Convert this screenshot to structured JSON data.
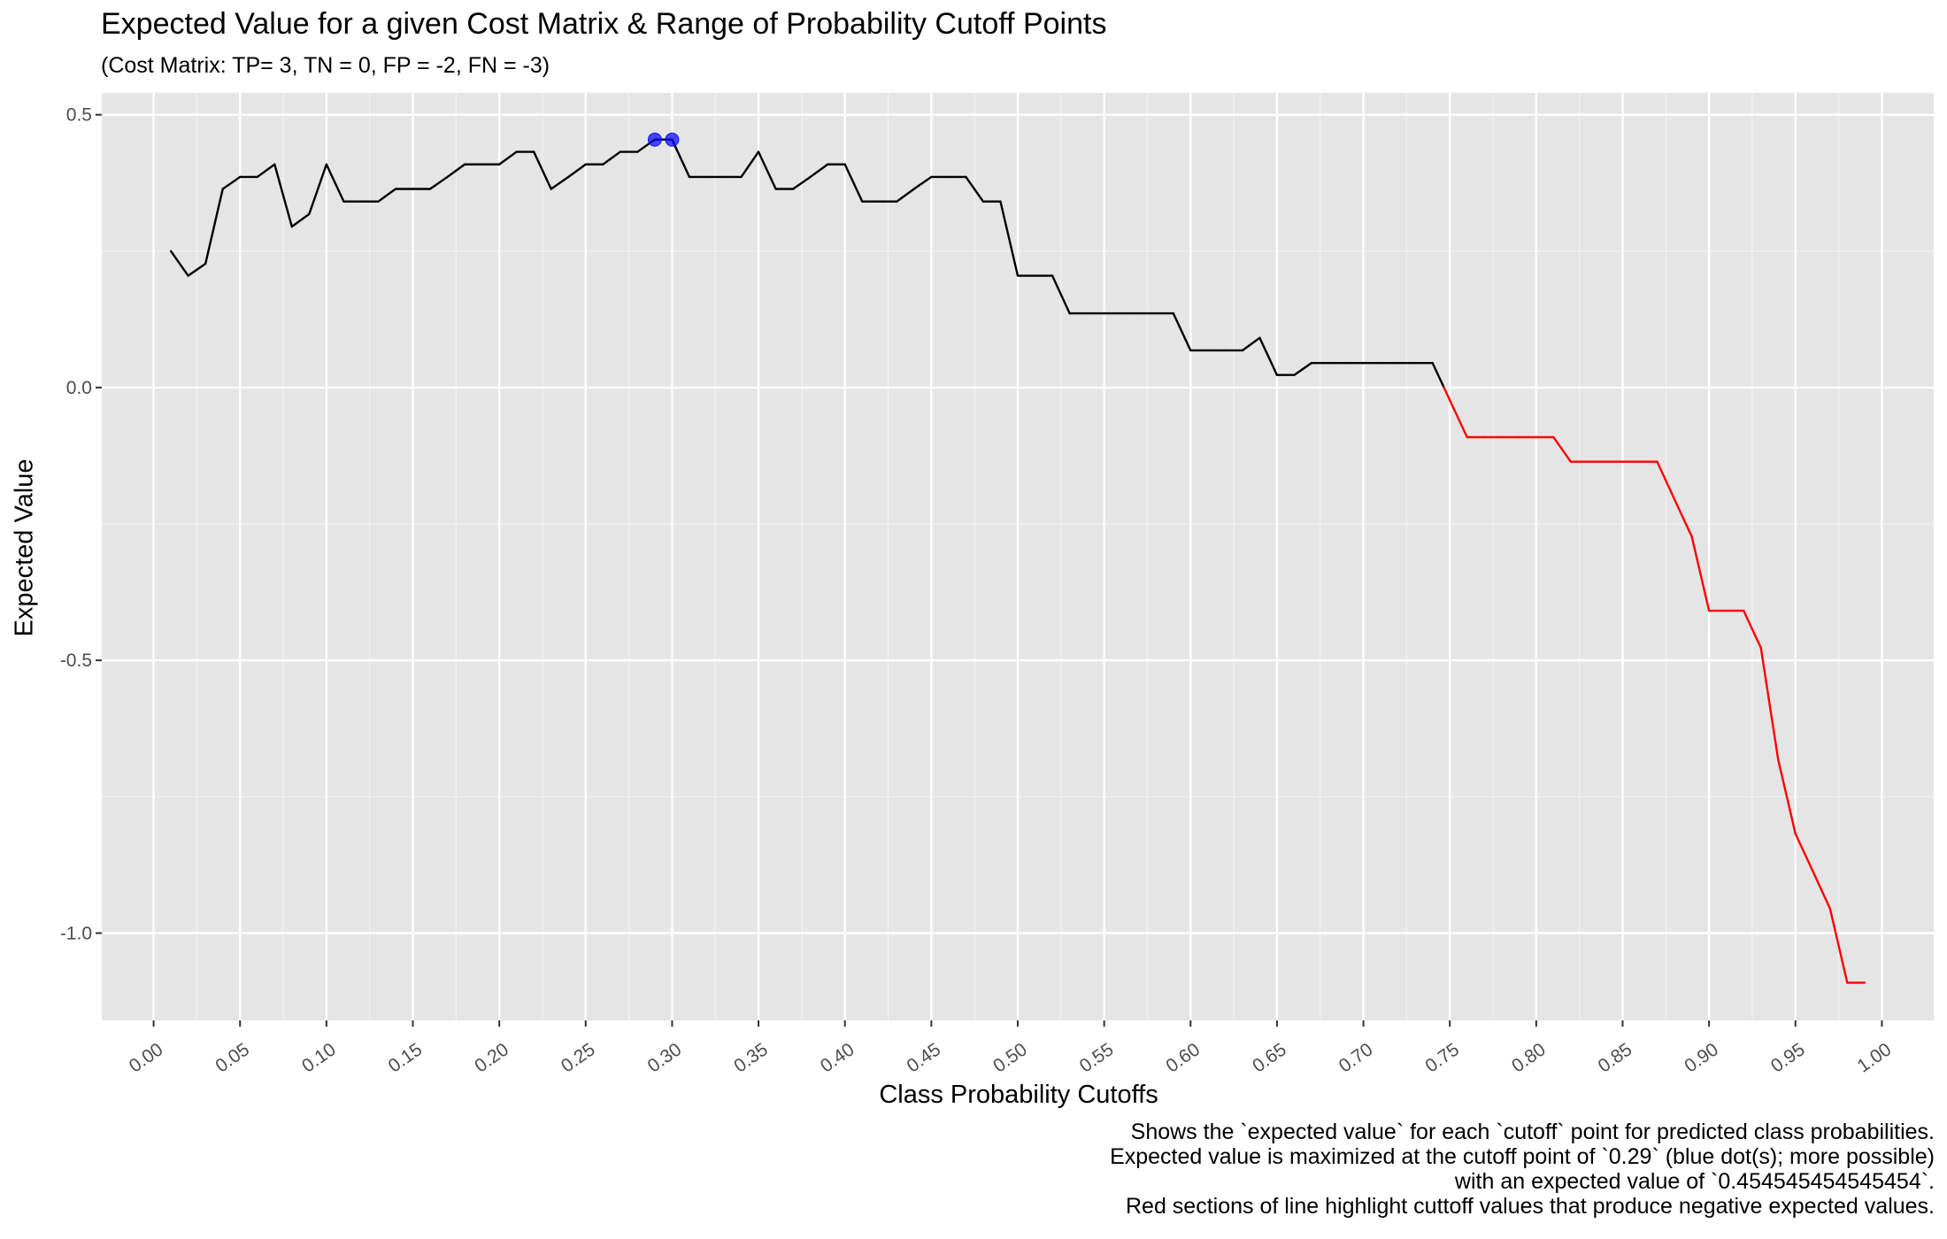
{
  "chart_data": {
    "type": "line",
    "title": "Expected Value for a given Cost Matrix & Range of Probability Cutoff Points",
    "subtitle": "(Cost Matrix: TP= 3, TN = 0, FP = -2, FN = -3)",
    "xlabel": "Class Probability Cutoffs",
    "ylabel": "Expected Value",
    "xlim": [
      -0.03,
      1.03
    ],
    "ylim": [
      -1.16,
      0.54
    ],
    "x_ticks": [
      "0.00",
      "0.05",
      "0.10",
      "0.15",
      "0.20",
      "0.25",
      "0.30",
      "0.35",
      "0.40",
      "0.45",
      "0.50",
      "0.55",
      "0.60",
      "0.65",
      "0.70",
      "0.75",
      "0.80",
      "0.85",
      "0.90",
      "0.95",
      "1.00"
    ],
    "y_ticks": [
      {
        "value": 0.5,
        "label": "0.5"
      },
      {
        "value": 0.0,
        "label": "0.0"
      },
      {
        "value": -0.5,
        "label": "-0.5"
      },
      {
        "value": -1.0,
        "label": "-1.0"
      }
    ],
    "grid": true,
    "colors": {
      "panel": "#e5e5e5",
      "grid_major": "#ffffff",
      "positive_line": "#000000",
      "negative_line": "#ff0000",
      "max_points": "#0000ff"
    },
    "series": [
      {
        "x": [
          0.01,
          0.02,
          0.03,
          0.04,
          0.05,
          0.06,
          0.07,
          0.08,
          0.09,
          0.1,
          0.11,
          0.12,
          0.13,
          0.14,
          0.15,
          0.16,
          0.17,
          0.18,
          0.19,
          0.2,
          0.21,
          0.22,
          0.23,
          0.24,
          0.25,
          0.26,
          0.27,
          0.28,
          0.29,
          0.3,
          0.31,
          0.32,
          0.33,
          0.34,
          0.35,
          0.36,
          0.37,
          0.38,
          0.39,
          0.4,
          0.41,
          0.42,
          0.43,
          0.44,
          0.45,
          0.46,
          0.47,
          0.48,
          0.49,
          0.5,
          0.51,
          0.52,
          0.53,
          0.54,
          0.55,
          0.56,
          0.57,
          0.58,
          0.59,
          0.6,
          0.61,
          0.62,
          0.63,
          0.64,
          0.65,
          0.66,
          0.67,
          0.68,
          0.69,
          0.7,
          0.71,
          0.72,
          0.73,
          0.74,
          0.75,
          0.76,
          0.77,
          0.78,
          0.79,
          0.8,
          0.81,
          0.82,
          0.83,
          0.84,
          0.85,
          0.86,
          0.87,
          0.88,
          0.89,
          0.9,
          0.91,
          0.92,
          0.93,
          0.94,
          0.95,
          0.96,
          0.97,
          0.98,
          0.99
        ],
        "values": [
          0.25,
          0.205,
          0.227,
          0.364,
          0.386,
          0.386,
          0.409,
          0.295,
          0.318,
          0.409,
          0.341,
          0.341,
          0.341,
          0.364,
          0.364,
          0.364,
          0.386,
          0.409,
          0.409,
          0.409,
          0.432,
          0.432,
          0.364,
          0.386,
          0.409,
          0.409,
          0.432,
          0.432,
          0.4545,
          0.4545,
          0.386,
          0.386,
          0.386,
          0.386,
          0.432,
          0.364,
          0.364,
          0.386,
          0.409,
          0.409,
          0.341,
          0.341,
          0.341,
          0.364,
          0.386,
          0.386,
          0.386,
          0.341,
          0.341,
          0.205,
          0.205,
          0.205,
          0.136,
          0.136,
          0.136,
          0.136,
          0.136,
          0.136,
          0.136,
          0.068,
          0.068,
          0.068,
          0.068,
          0.091,
          0.023,
          0.023,
          0.045,
          0.045,
          0.045,
          0.045,
          0.045,
          0.045,
          0.045,
          0.045,
          -0.023,
          -0.091,
          -0.091,
          -0.091,
          -0.091,
          -0.091,
          -0.091,
          -0.136,
          -0.136,
          -0.136,
          -0.136,
          -0.136,
          -0.136,
          -0.205,
          -0.273,
          -0.409,
          -0.409,
          -0.409,
          -0.477,
          -0.682,
          -0.818,
          -0.886,
          -0.955,
          -1.091,
          -1.091
        ]
      }
    ],
    "max_points": [
      {
        "x": 0.29,
        "y": 0.4545
      },
      {
        "x": 0.3,
        "y": 0.4545
      }
    ]
  },
  "caption": [
    "Shows the `expected value` for each `cutoff` point for predicted class probabilities.",
    "Expected value is maximized at the cutoff point of `0.29` (blue dot(s); more possible)",
    "with an expected value of `0.454545454545454`.",
    "Red sections of line highlight cuttoff values that produce negative expected values."
  ]
}
